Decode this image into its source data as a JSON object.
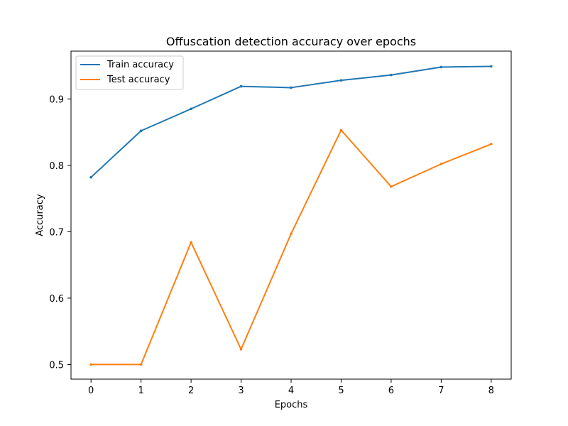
{
  "chart_data": {
    "type": "line",
    "title": "Offuscation detection accuracy over epochs",
    "xlabel": "Epochs",
    "ylabel": "Accuracy",
    "x": [
      0,
      1,
      2,
      3,
      4,
      5,
      6,
      7,
      8
    ],
    "xlim": [
      -0.4,
      8.4
    ],
    "ylim": [
      0.478,
      0.972
    ],
    "xticks": [
      0,
      1,
      2,
      3,
      4,
      5,
      6,
      7,
      8
    ],
    "yticks": [
      0.5,
      0.6,
      0.7,
      0.8,
      0.9
    ],
    "ytick_labels": [
      "0.5",
      "0.6",
      "0.7",
      "0.8",
      "0.9"
    ],
    "grid": false,
    "legend_position": "top-left",
    "series": [
      {
        "name": "Train accuracy",
        "color": "#1f77b4",
        "values": [
          0.782,
          0.852,
          0.885,
          0.919,
          0.917,
          0.928,
          0.936,
          0.948,
          0.949
        ]
      },
      {
        "name": "Test accuracy",
        "color": "#ff7f0e",
        "values": [
          0.5,
          0.5,
          0.684,
          0.523,
          0.697,
          0.853,
          0.768,
          0.802,
          0.832
        ]
      }
    ]
  }
}
